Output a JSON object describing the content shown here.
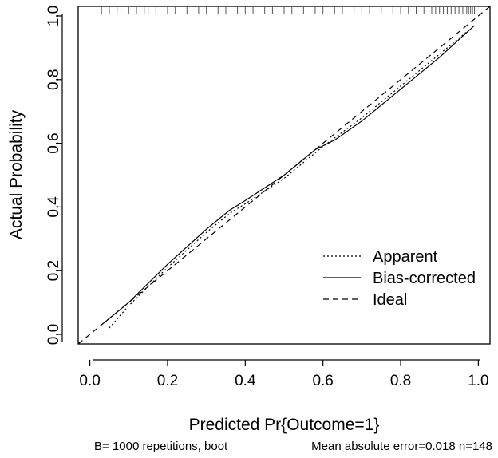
{
  "chart_data": {
    "type": "line",
    "title": "",
    "xlabel": "Predicted Pr{Outcome=1}",
    "ylabel": "Actual Probability",
    "xlim": [
      -0.03,
      1.03
    ],
    "ylim": [
      -0.03,
      1.03
    ],
    "x_ticks": [
      0.0,
      0.2,
      0.4,
      0.6,
      0.8,
      1.0
    ],
    "y_ticks": [
      0.0,
      0.2,
      0.4,
      0.6,
      0.8,
      1.0
    ],
    "x_tick_labels": [
      "0.0",
      "0.2",
      "0.4",
      "0.6",
      "0.8",
      "1.0"
    ],
    "y_tick_labels": [
      "0.0",
      "0.2",
      "0.4",
      "0.6",
      "0.8",
      "1.0"
    ],
    "grid": false,
    "legend_position": "bottom-right",
    "series": [
      {
        "name": "Apparent",
        "line_style": "dotted",
        "x": [
          0.05,
          0.1,
          0.2,
          0.3,
          0.36,
          0.4,
          0.5,
          0.6,
          0.7,
          0.8,
          0.9,
          0.98
        ],
        "y": [
          0.02,
          0.09,
          0.21,
          0.32,
          0.38,
          0.41,
          0.49,
          0.59,
          0.68,
          0.78,
          0.88,
          0.96
        ]
      },
      {
        "name": "Bias-corrected",
        "line_style": "solid",
        "x": [
          0.04,
          0.1,
          0.2,
          0.3,
          0.36,
          0.4,
          0.5,
          0.58,
          0.63,
          0.7,
          0.8,
          0.9,
          0.99
        ],
        "y": [
          0.04,
          0.1,
          0.22,
          0.33,
          0.39,
          0.42,
          0.5,
          0.58,
          0.61,
          0.67,
          0.77,
          0.87,
          0.97
        ]
      },
      {
        "name": "Ideal",
        "line_style": "dashed",
        "x": [
          -0.03,
          1.03
        ],
        "y": [
          -0.03,
          1.03
        ]
      }
    ],
    "rug_x": [
      0.03,
      0.05,
      0.07,
      0.08,
      0.1,
      0.12,
      0.14,
      0.15,
      0.17,
      0.2,
      0.22,
      0.25,
      0.28,
      0.3,
      0.33,
      0.35,
      0.38,
      0.4,
      0.42,
      0.45,
      0.47,
      0.5,
      0.52,
      0.55,
      0.58,
      0.6,
      0.63,
      0.65,
      0.68,
      0.7,
      0.72,
      0.75,
      0.78,
      0.8,
      0.82,
      0.84,
      0.86,
      0.88,
      0.89,
      0.9,
      0.91,
      0.92,
      0.93,
      0.94,
      0.95,
      0.96,
      0.97,
      0.975,
      0.98,
      0.985,
      0.99
    ]
  },
  "footer": {
    "left": "B= 1000 repetitions, boot",
    "right": "Mean absolute error=0.018 n=148"
  }
}
